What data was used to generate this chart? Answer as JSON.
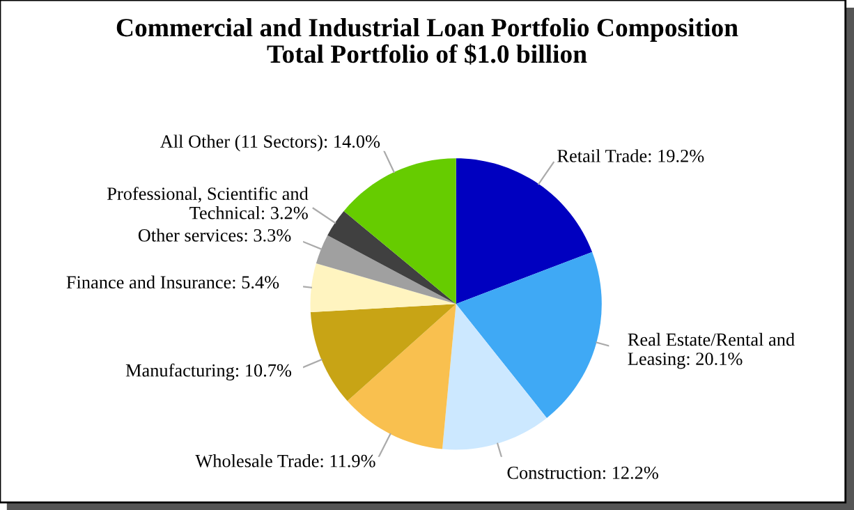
{
  "chart_data": {
    "type": "pie",
    "title": "Commercial and Industrial Loan Portfolio Composition\nTotal Portfolio of $1.0 billion",
    "categories": [
      "Retail Trade",
      "Real Estate/Rental and Leasing",
      "Construction",
      "Wholesale Trade",
      "Manufacturing",
      "Finance and Insurance",
      "Other services",
      "Professional, Scientific and Technical",
      "All Other (11 Sectors)"
    ],
    "values": [
      19.2,
      20.1,
      12.2,
      11.9,
      10.7,
      5.4,
      3.3,
      3.2,
      14.0
    ],
    "colors": [
      "#0000c0",
      "#3fa9f5",
      "#cce8ff",
      "#f9c04f",
      "#c8a415",
      "#fff4c0",
      "#a0a0a0",
      "#404040",
      "#66cc00"
    ],
    "value_labels": [
      "19.2%",
      "20.1%",
      "12.2%",
      "11.9%",
      "10.7%",
      "5.4%",
      "3.3%",
      "3.2%",
      "14.0%"
    ]
  }
}
